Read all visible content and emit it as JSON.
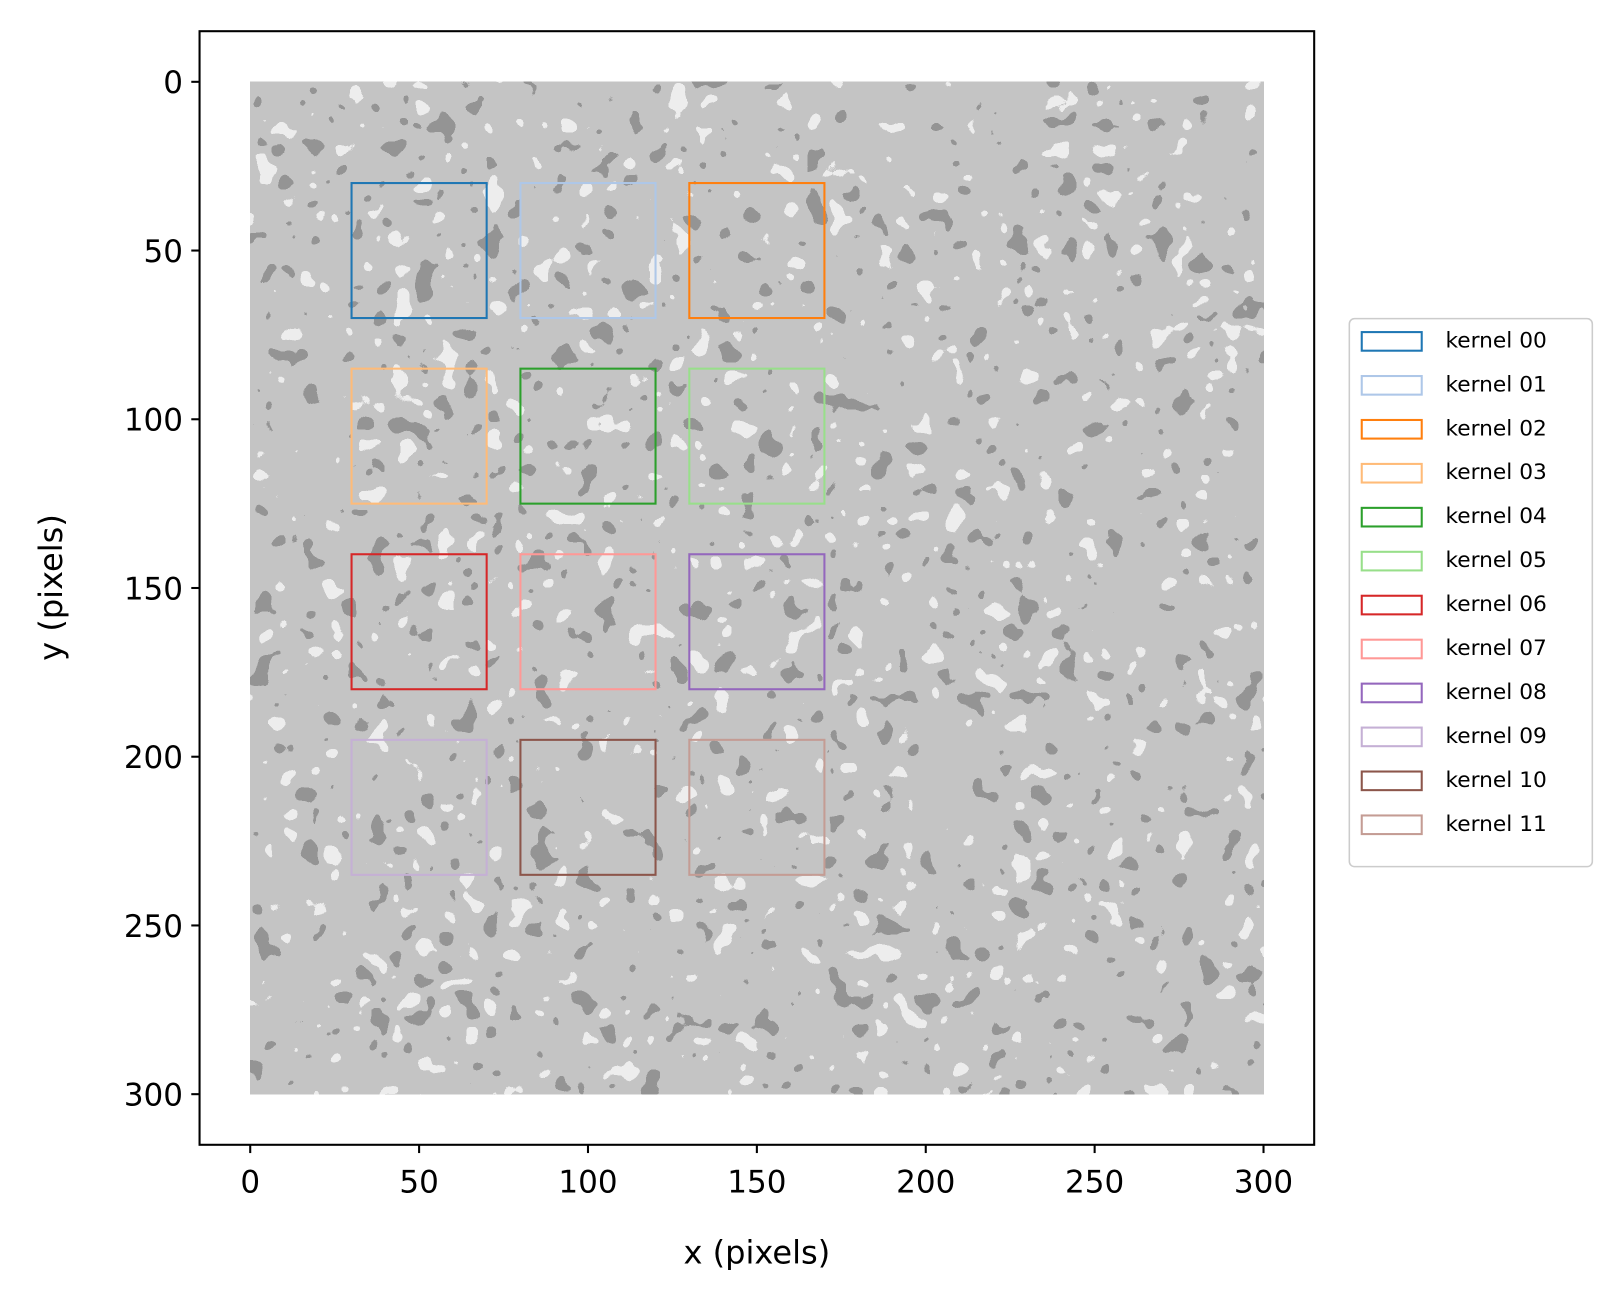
{
  "chart_data": {
    "type": "image_rectangles",
    "x_label": "x (pixels)",
    "y_label": "y (pixels)",
    "xlim": [
      -15,
      315
    ],
    "ylim": [
      315,
      -15
    ],
    "xticks": [
      0,
      50,
      100,
      150,
      200,
      250,
      300
    ],
    "yticks": [
      0,
      50,
      100,
      150,
      200,
      250,
      300
    ],
    "image_extent": [
      0,
      300
    ],
    "legend": "outside right",
    "rectangles": [
      {
        "name": "kernel 00",
        "color": "#1f77b4",
        "x": 30,
        "y": 30,
        "width": 40,
        "height": 40
      },
      {
        "name": "kernel 01",
        "color": "#aec7e8",
        "x": 80,
        "y": 30,
        "width": 40,
        "height": 40
      },
      {
        "name": "kernel 02",
        "color": "#ff7f0e",
        "x": 130,
        "y": 30,
        "width": 40,
        "height": 40
      },
      {
        "name": "kernel 03",
        "color": "#ffbb78",
        "x": 30,
        "y": 85,
        "width": 40,
        "height": 40
      },
      {
        "name": "kernel 04",
        "color": "#2ca02c",
        "x": 80,
        "y": 85,
        "width": 40,
        "height": 40
      },
      {
        "name": "kernel 05",
        "color": "#98df8a",
        "x": 130,
        "y": 85,
        "width": 40,
        "height": 40
      },
      {
        "name": "kernel 06",
        "color": "#d62728",
        "x": 30,
        "y": 140,
        "width": 40,
        "height": 40
      },
      {
        "name": "kernel 07",
        "color": "#ff9896",
        "x": 80,
        "y": 140,
        "width": 40,
        "height": 40
      },
      {
        "name": "kernel 08",
        "color": "#9467bd",
        "x": 130,
        "y": 140,
        "width": 40,
        "height": 40
      },
      {
        "name": "kernel 09",
        "color": "#c5b0d5",
        "x": 30,
        "y": 195,
        "width": 40,
        "height": 40
      },
      {
        "name": "kernel 10",
        "color": "#8c564b",
        "x": 80,
        "y": 195,
        "width": 40,
        "height": 40
      },
      {
        "name": "kernel 11",
        "color": "#c49c94",
        "x": 130,
        "y": 195,
        "width": 40,
        "height": 40
      }
    ]
  }
}
